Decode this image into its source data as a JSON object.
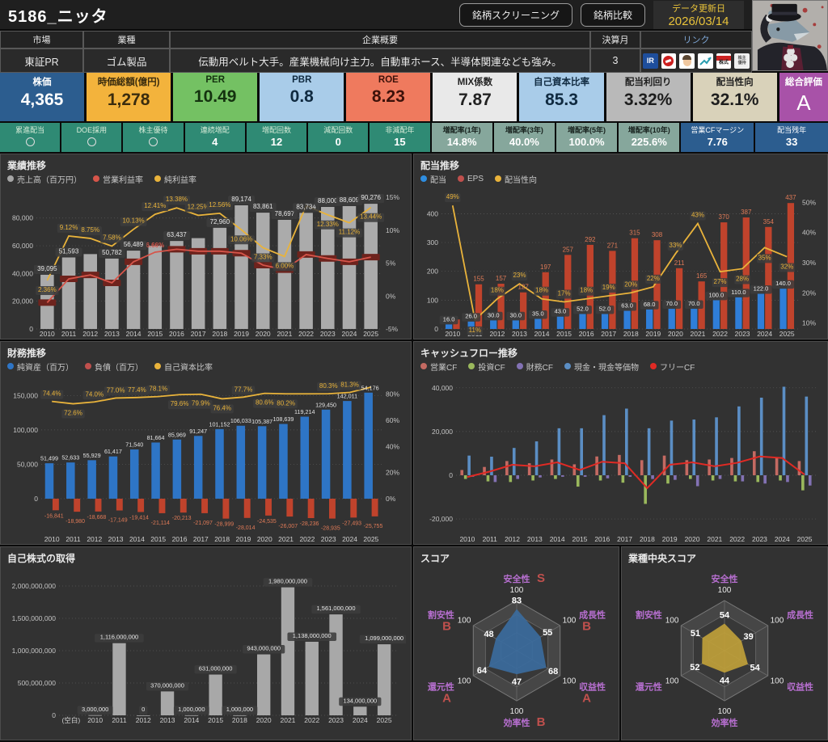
{
  "header": {
    "title": "5186_ニッタ",
    "screening_button": "銘柄スクリーニング",
    "compare_button": "銘柄比較",
    "update_label": "データ更新日",
    "update_date": "2026/03/14"
  },
  "info": {
    "market_label": "市場",
    "market": "東証PR",
    "industry_label": "業種",
    "industry": "ゴム製品",
    "overview_label": "企業概要",
    "overview": "伝動用ベルト大手。産業機械向け主力。自動車ホース、半導体関連なども強み。",
    "fiscal_label": "決算月",
    "fiscal_month": "3",
    "links_label": "リンク",
    "links": [
      {
        "name": "irbank",
        "text": "IR"
      },
      {
        "name": "kabutan",
        "text": ""
      },
      {
        "name": "yahoo-finance",
        "text": ""
      },
      {
        "name": "minkabu",
        "text": ""
      },
      {
        "name": "nikkei",
        "text": "株式"
      },
      {
        "name": "yutai",
        "text": "株主優待"
      }
    ]
  },
  "cards": [
    {
      "label": "株価",
      "value": "4,365",
      "bg": "#2c5d8f",
      "fg": "#ffffff"
    },
    {
      "label": "時価総額(億円)",
      "value": "1,278",
      "bg": "#f3b33c",
      "fg": "#3a2c0e"
    },
    {
      "label": "PER",
      "value": "10.49",
      "bg": "#74c163",
      "fg": "#14320f"
    },
    {
      "label": "PBR",
      "value": "0.8",
      "bg": "#a9cce9",
      "fg": "#102a40"
    },
    {
      "label": "ROE",
      "value": "8.23",
      "bg": "#ef7a5e",
      "fg": "#3d120a"
    },
    {
      "label": "MIX係数",
      "value": "7.87",
      "bg": "#e9e9e9",
      "fg": "#222222"
    },
    {
      "label": "自己資本比率",
      "value": "85.3",
      "bg": "#a9cce9",
      "fg": "#102a40"
    },
    {
      "label": "配当利回り",
      "value": "3.32%",
      "bg": "#b9b9b9",
      "fg": "#1d1d1d"
    },
    {
      "label": "配当性向",
      "value": "32.1%",
      "bg": "#d9d2ba",
      "fg": "#1d1d1d"
    },
    {
      "label": "総合評価",
      "value": "A",
      "bg": "#a852a8",
      "fg": "#ffffff"
    }
  ],
  "flags": [
    {
      "label": "累進配当",
      "value": "○",
      "style": "teal",
      "circle": true
    },
    {
      "label": "DOE採用",
      "value": "○",
      "style": "teal",
      "circle": true
    },
    {
      "label": "株主優待",
      "value": "○",
      "style": "teal",
      "circle": true
    },
    {
      "label": "連続増配",
      "value": "4",
      "style": "teal"
    },
    {
      "label": "増配回数",
      "value": "12",
      "style": "teal"
    },
    {
      "label": "減配回数",
      "value": "0",
      "style": "teal"
    },
    {
      "label": "非減配年",
      "value": "15",
      "style": "teal"
    },
    {
      "label": "増配率(1年)",
      "value": "14.8%",
      "style": "sage"
    },
    {
      "label": "増配率(3年)",
      "value": "40.0%",
      "style": "sage"
    },
    {
      "label": "増配率(5年)",
      "value": "100.0%",
      "style": "sage"
    },
    {
      "label": "増配率(10年)",
      "value": "225.6%",
      "style": "sage"
    },
    {
      "label": "営業CFマージン",
      "value": "7.76",
      "style": "blue"
    },
    {
      "label": "配当残年",
      "value": "33",
      "style": "blue"
    }
  ],
  "charts": {
    "performance": {
      "type": "combo",
      "title": "業績推移",
      "legend": [
        {
          "label": "売上高（百万円）",
          "color": "#a6a6a6"
        },
        {
          "label": "営業利益率",
          "color": "#d6554a"
        },
        {
          "label": "純利益率",
          "color": "#e9b33b"
        }
      ],
      "years": [
        "2010",
        "2011",
        "2012",
        "2013",
        "2014",
        "2015",
        "2016",
        "2017",
        "2018",
        "2019",
        "2020",
        "2021",
        "2022",
        "2023",
        "2024",
        "2025"
      ],
      "sales": [
        39095,
        51593,
        54000,
        50782,
        56489,
        60000,
        63437,
        65500,
        72960,
        89174,
        83861,
        78697,
        83734,
        88000,
        88609,
        90276
      ],
      "sales_labels": [
        "39,095",
        "51,593",
        null,
        "50,782",
        "56,489",
        null,
        "63,437",
        null,
        "72,960",
        "89,174",
        "83,861",
        "78,697",
        "83,734",
        "88,000",
        "88,609",
        "90,276"
      ],
      "op_margin": [
        -1.0,
        2.6,
        3.2,
        2.0,
        5.2,
        6.66,
        7.1,
        6.8,
        6.8,
        6.5,
        4.7,
        4.0,
        6.3,
        5.7,
        5.2,
        5.9
      ],
      "op_label": "6.66%",
      "net_margin": [
        2.36,
        9.12,
        8.75,
        7.58,
        10.13,
        12.41,
        13.38,
        12.25,
        12.56,
        10.06,
        7.33,
        6.0,
        13.7,
        12.33,
        11.12,
        13.44
      ],
      "net_labels": [
        "2.36%",
        "9.12%",
        "8.75%",
        "7.58%",
        "10.13%",
        "12.41%",
        "13.38%",
        "12.25%",
        "12.56%",
        "10.06%",
        "7.33%",
        "6.00%",
        null,
        "12.33%",
        "11.12%",
        "13.44%"
      ],
      "bar_color": "#ababab",
      "op_color": "#d6554a",
      "net_color": "#e9b33b",
      "left_ticks": [
        {
          "v": 0,
          "t": "0"
        },
        {
          "v": 20000,
          "t": "20,000"
        },
        {
          "v": 40000,
          "t": "40,000"
        },
        {
          "v": 60000,
          "t": "60,000"
        },
        {
          "v": 80000,
          "t": "80,000"
        }
      ],
      "right_ticks": [
        {
          "v": -5,
          "t": "-5%"
        },
        {
          "v": 0,
          "t": "0%"
        },
        {
          "v": 5,
          "t": "5%"
        },
        {
          "v": 10,
          "t": "10%"
        },
        {
          "v": 15,
          "t": "15%"
        }
      ]
    },
    "dividend": {
      "type": "combo",
      "title": "配当推移",
      "legend": [
        {
          "label": "配当",
          "color": "#2e8de0"
        },
        {
          "label": "EPS",
          "color": "#c0504d"
        },
        {
          "label": "配当性向",
          "color": "#e9b33b"
        }
      ],
      "years": [
        "2010",
        "2011",
        "2012",
        "2013",
        "2014",
        "2015",
        "2016",
        "2017",
        "2018",
        "2019",
        "2020",
        "2021",
        "2022",
        "2023",
        "2024",
        "2025"
      ],
      "dividend": [
        16,
        26,
        30,
        30,
        35,
        43,
        52,
        52,
        63,
        68,
        70,
        70,
        100,
        110,
        122,
        140
      ],
      "dividend_labels": [
        "16.0",
        "26.0",
        "30.0",
        "30.0",
        "35.0",
        "43.0",
        "52.0",
        "52.0",
        "63.0",
        "68.0",
        "70.0",
        "70.0",
        "100.0",
        "110.0",
        "122.0",
        "140.0"
      ],
      "eps": [
        33,
        155,
        157,
        127,
        197,
        257,
        292,
        271,
        315,
        308,
        211,
        165,
        370,
        387,
        354,
        437
      ],
      "eps_labels": [
        null,
        "155",
        "157",
        "127",
        "197",
        "257",
        "292",
        "271",
        "315",
        "308",
        "211",
        "165",
        "370",
        "387",
        "354",
        "437"
      ],
      "payout": [
        49,
        11,
        18,
        23,
        18,
        17,
        18,
        19,
        20,
        22,
        33,
        43,
        27,
        28,
        35,
        32
      ],
      "payout_labels": [
        "49%",
        "11%",
        "18%",
        "23%",
        "18%",
        "17%",
        "18%",
        "19%",
        "20%",
        "22%",
        "33%",
        "43%",
        "27%",
        "28%",
        "35%",
        "32%"
      ],
      "div_color": "#2f7ed8",
      "eps_color": "#c0432c",
      "payout_color": "#e9b33b",
      "left_ticks": [
        {
          "v": 0,
          "t": "0"
        },
        {
          "v": 100,
          "t": "100"
        },
        {
          "v": 200,
          "t": "200"
        },
        {
          "v": 300,
          "t": "300"
        },
        {
          "v": 400,
          "t": "400"
        }
      ],
      "right_ticks": [
        {
          "v": 10,
          "t": "10%"
        },
        {
          "v": 20,
          "t": "20%"
        },
        {
          "v": 30,
          "t": "30%"
        },
        {
          "v": 40,
          "t": "40%"
        },
        {
          "v": 50,
          "t": "50%"
        }
      ]
    },
    "finance": {
      "type": "combo",
      "title": "財務推移",
      "legend": [
        {
          "label": "純資産（百万）",
          "color": "#2e75c6"
        },
        {
          "label": "負債（百万）",
          "color": "#c0504d"
        },
        {
          "label": "自己資本比率",
          "color": "#e9b33b"
        }
      ],
      "years": [
        "2010",
        "2011",
        "2012",
        "2013",
        "2014",
        "2015",
        "2016",
        "2017",
        "2018",
        "2019",
        "2020",
        "2021",
        "2022",
        "2023",
        "2024",
        "2025"
      ],
      "equity": [
        51499,
        52633,
        55929,
        61417,
        71540,
        81664,
        85969,
        91247,
        101152,
        106033,
        105387,
        108639,
        119214,
        129450,
        142011,
        154176
      ],
      "equity_labels": [
        "51,499",
        "52,633",
        "55,929",
        "61,417",
        "71,540",
        "81,664",
        "85,969",
        "91,247",
        "101,152",
        "106,033",
        "105,387",
        "108,639",
        "119,214",
        "129,450",
        "142,011",
        "154,176"
      ],
      "debt": [
        -16841,
        -18980,
        -18668,
        -17149,
        -19414,
        -21114,
        -20213,
        -21097,
        -28999,
        -28014,
        -24535,
        -26007,
        -28236,
        -28935,
        -27493,
        -25755
      ],
      "debt_labels": [
        "-16,841",
        "-18,980",
        "-18,668",
        "-17,149",
        "-19,414",
        "-21,114",
        "-20,213",
        "-21,097",
        "-28,999",
        "-28,014",
        "-24,535",
        "-26,007",
        "-28,236",
        "-28,935",
        "-27,493",
        "-25,755"
      ],
      "ratio": [
        74.4,
        72.6,
        74.0,
        77.0,
        77.4,
        78.1,
        79.6,
        79.9,
        76.4,
        77.7,
        80.6,
        80.2,
        80.2,
        80.3,
        81.3,
        85.3
      ],
      "ratio_labels": [
        "74.4%",
        "72.6%",
        "74.0%",
        "77.0%",
        "77.4%",
        "78.1%",
        "79.6%",
        "79.9%",
        "76.4%",
        "77.7%",
        "80.6%",
        "80.2%",
        null,
        "80.3%",
        "81.3%",
        null
      ],
      "equity_color": "#2e75c6",
      "debt_color": "#c0432c",
      "ratio_color": "#e9b33b",
      "left_ticks": [
        {
          "v": 0,
          "t": "0"
        },
        {
          "v": 50000,
          "t": "50,000"
        },
        {
          "v": 100000,
          "t": "100,000"
        },
        {
          "v": 150000,
          "t": "150,000"
        }
      ],
      "right_ticks": [
        {
          "v": 0,
          "t": "0%"
        },
        {
          "v": 20,
          "t": "20%"
        },
        {
          "v": 40,
          "t": "40%"
        },
        {
          "v": 60,
          "t": "60%"
        },
        {
          "v": 80,
          "t": "80%"
        }
      ]
    },
    "cashflow": {
      "type": "combo",
      "title": "キャッシュフロー推移",
      "legend": [
        {
          "label": "営業CF",
          "color": "#c46a62"
        },
        {
          "label": "投資CF",
          "color": "#9ab85c"
        },
        {
          "label": "財務CF",
          "color": "#8372b4"
        },
        {
          "label": "現金・現金等価物",
          "color": "#5b8ec4"
        },
        {
          "label": "フリーCF",
          "color": "#e02a24"
        }
      ],
      "years": [
        "2010",
        "2011",
        "2012",
        "2013",
        "2014",
        "2015",
        "2016",
        "2017",
        "2018",
        "2019",
        "2020",
        "2021",
        "2022",
        "2023",
        "2024",
        "2025"
      ],
      "operating": [
        2400,
        3800,
        6500,
        5500,
        7200,
        5000,
        8600,
        9300,
        6900,
        9000,
        6900,
        7200,
        7900,
        11000,
        8300,
        6500
      ],
      "invest": [
        -1700,
        -2800,
        -3100,
        -2400,
        -1700,
        -5200,
        -2400,
        -3400,
        -13100,
        -3800,
        -1700,
        -2400,
        -2800,
        -3100,
        -2400,
        -6900
      ],
      "cash": [
        9000,
        8500,
        12500,
        15500,
        21500,
        21500,
        27500,
        30500,
        21500,
        25000,
        25500,
        26500,
        31500,
        35500,
        40500,
        36000
      ],
      "finance": [
        -700,
        -3100,
        -1700,
        -1000,
        -700,
        -700,
        -1400,
        -700,
        -1700,
        -2100,
        -5000,
        -1700,
        -2800,
        -3800,
        -3100,
        -4700
      ],
      "free": [
        -800,
        1700,
        4800,
        4100,
        5900,
        2400,
        6200,
        5500,
        -5900,
        4800,
        5900,
        4100,
        5700,
        8600,
        7900,
        300
      ],
      "left_ticks": [
        {
          "v": -20000,
          "t": "-20,000"
        },
        {
          "v": 0,
          "t": "0"
        },
        {
          "v": 20000,
          "t": "20,000"
        },
        {
          "v": 40000,
          "t": "40,000"
        }
      ]
    },
    "buyback": {
      "type": "bar",
      "title": "自己株式の取得",
      "categories": [
        "(空白)",
        "2010",
        "2011",
        "2012",
        "2013",
        "2014",
        "2015",
        "2018",
        "2020",
        "2021",
        "2022",
        "2023",
        "2024",
        "2025"
      ],
      "values": [
        null,
        3000000,
        1116000000,
        0,
        370000000,
        1000000,
        631000000,
        1000000,
        943000000,
        1980000000,
        1138000000,
        1561000000,
        134000000,
        1099000000
      ],
      "labels": [
        null,
        "3,000,000",
        "1,116,000,000",
        "0",
        "370,000,000",
        "1,000,000",
        "631,000,000",
        "1,000,000",
        "943,000,000",
        "1,980,000,000",
        "1,138,000,000",
        "1,561,000,000",
        "134,000,000",
        "1,099,000,000"
      ],
      "bar_color": "#a8a8a8",
      "left_ticks": [
        {
          "v": 0,
          "t": "0"
        },
        {
          "v": 500000000,
          "t": "500,000,000"
        },
        {
          "v": 1000000000,
          "t": "1,000,000,000"
        },
        {
          "v": 1500000000,
          "t": "1,500,000,000"
        },
        {
          "v": 2000000000,
          "t": "2,000,000,000"
        }
      ]
    },
    "score": {
      "type": "radar",
      "title": "スコア",
      "axes": [
        "安全性",
        "成長性",
        "収益性",
        "効率性",
        "還元性",
        "割安性"
      ],
      "values": [
        83,
        55,
        68,
        47,
        64,
        48
      ],
      "grades": [
        "S",
        "B",
        "A",
        "B",
        "A",
        "B"
      ],
      "max": 100,
      "fill": "#3b6b9d",
      "axis_color": "#b76fd0",
      "grade_color": "#c0504d"
    },
    "industry_score": {
      "type": "radar",
      "title": "業種中央スコア",
      "axes": [
        "安全性",
        "成長性",
        "収益性",
        "効率性",
        "還元性",
        "割安性"
      ],
      "values": [
        54,
        39,
        54,
        44,
        52,
        51
      ],
      "grades": null,
      "max": 100,
      "fill": "#bfa03a",
      "axis_color": "#b76fd0",
      "grade_color": "#c0504d"
    }
  }
}
